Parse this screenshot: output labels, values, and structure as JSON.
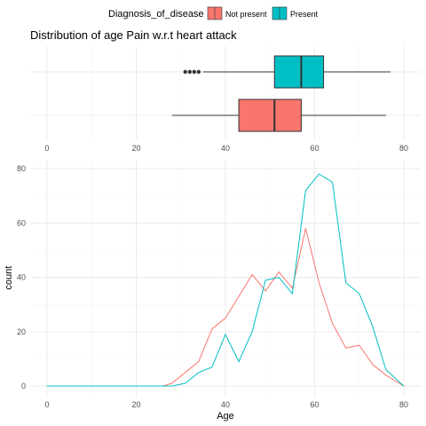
{
  "legend": {
    "title": "Diagnosis_of_disease",
    "items": [
      {
        "label": "Not present",
        "color": "#F8766D"
      },
      {
        "label": "Present",
        "color": "#00BFC4"
      }
    ]
  },
  "chart_data": [
    {
      "type": "boxplot",
      "title": "Distribution of age Pain w.r.t heart attack",
      "xlim": [
        0,
        80
      ],
      "xticks": [
        0,
        20,
        40,
        60,
        80
      ],
      "grid": true,
      "series": [
        {
          "name": "Present",
          "color": "#00BFC4",
          "whisker_low": 35,
          "q1": 51,
          "median": 57,
          "q3": 62,
          "whisker_high": 77,
          "outliers": [
            31,
            32,
            33,
            34
          ]
        },
        {
          "name": "Not present",
          "color": "#F8766D",
          "whisker_low": 28,
          "q1": 43,
          "median": 51,
          "q3": 57,
          "whisker_high": 76,
          "outliers": []
        }
      ]
    },
    {
      "type": "line",
      "xlabel": "Age",
      "ylabel": "count",
      "xlim": [
        0,
        80
      ],
      "ylim": [
        0,
        80
      ],
      "xticks": [
        0,
        20,
        40,
        60,
        80
      ],
      "yticks": [
        0,
        20,
        40,
        60,
        80
      ],
      "grid": true,
      "series": [
        {
          "name": "Not present",
          "color": "#F8766D",
          "x": [
            0,
            24,
            26,
            28,
            31,
            34,
            37,
            40,
            43,
            46,
            49,
            52,
            55,
            58,
            61,
            64,
            67,
            70,
            73,
            76,
            80
          ],
          "y": [
            0,
            0,
            0,
            1,
            5,
            9,
            21,
            25,
            33,
            41,
            35,
            42,
            36,
            58,
            38,
            23,
            14,
            15,
            8,
            4,
            0
          ]
        },
        {
          "name": "Present",
          "color": "#00BFC4",
          "x": [
            0,
            28,
            31,
            34,
            37,
            40,
            43,
            46,
            49,
            52,
            55,
            58,
            61,
            64,
            67,
            70,
            73,
            76,
            80
          ],
          "y": [
            0,
            0,
            1,
            5,
            7,
            19,
            9,
            20,
            39,
            40,
            34,
            72,
            78,
            75,
            38,
            34,
            22,
            6,
            0
          ]
        }
      ]
    }
  ]
}
